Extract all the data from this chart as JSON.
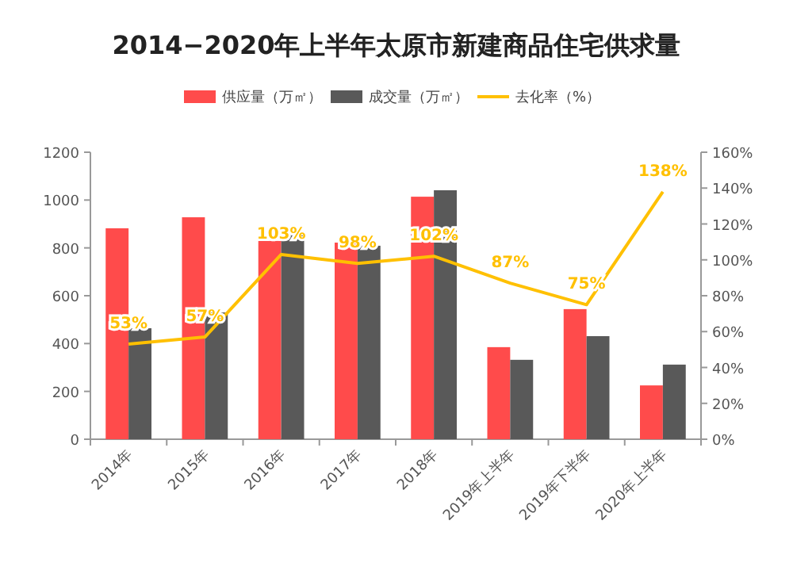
{
  "chart_data": {
    "type": "bar",
    "title": "2014−2020年上半年太原市新建商品住宅供求量",
    "categories": [
      "2014年",
      "2015年",
      "2016年",
      "2017年",
      "2018年",
      "2019年上半年",
      "2019年下半年",
      "2020年上半年"
    ],
    "series": [
      {
        "name": "供应量（万㎡）",
        "color": "#ff4b4b",
        "values": [
          882,
          928,
          829,
          822,
          1014,
          385,
          544,
          225
        ]
      },
      {
        "name": "成交量（万㎡）",
        "color": "#595959",
        "values": [
          464,
          530,
          855,
          809,
          1041,
          332,
          431,
          312
        ]
      },
      {
        "name": "去化率（%）",
        "type": "line",
        "axis": "y2",
        "color": "#ffc000",
        "values": [
          53,
          57,
          103,
          98,
          102,
          87,
          75,
          138
        ],
        "value_labels": [
          "53%",
          "57%",
          "103%",
          "98%",
          "102%",
          "87%",
          "75%",
          "138%"
        ]
      }
    ],
    "ylim": [
      0,
      1200
    ],
    "yticks": [
      0,
      200,
      400,
      600,
      800,
      1000,
      1200
    ],
    "y2lim": [
      0,
      160
    ],
    "y2ticks": [
      {
        "value": 0,
        "label": "0%"
      },
      {
        "value": 20,
        "label": "20%"
      },
      {
        "value": 40,
        "label": "40%"
      },
      {
        "value": 60,
        "label": "60%"
      },
      {
        "value": 80,
        "label": "80%"
      },
      {
        "value": 100,
        "label": "100%"
      },
      {
        "value": 120,
        "label": "120%"
      },
      {
        "value": 140,
        "label": "140%"
      },
      {
        "value": 160,
        "label": "160%"
      }
    ],
    "legend": "top",
    "grid": false
  }
}
